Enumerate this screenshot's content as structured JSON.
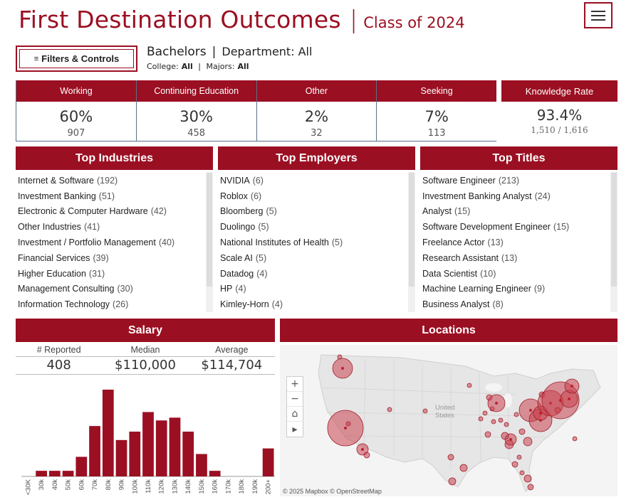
{
  "header": {
    "title": "First Destination Outcomes",
    "subtitle": "Class of 2024",
    "menu_icon": "hamburger-icon"
  },
  "filters": {
    "button_label": "Filters & Controls",
    "button_icon": "list-icon",
    "degree": "Bachelors",
    "department_label": "Department:",
    "department_value": "All",
    "college_label": "College:",
    "college_value": "All",
    "majors_label": "Majors:",
    "majors_value": "All"
  },
  "kpis": [
    {
      "label": "Working",
      "percent": "60%",
      "count": "907"
    },
    {
      "label": "Continuing Education",
      "percent": "30%",
      "count": "458"
    },
    {
      "label": "Other",
      "percent": "2%",
      "count": "32"
    },
    {
      "label": "Seeking",
      "percent": "7%",
      "count": "113"
    }
  ],
  "knowledge": {
    "label": "Knowledge Rate",
    "value": "93.4%",
    "fraction": "1,510 / 1,616"
  },
  "top_industries": {
    "title": "Top Industries",
    "items": [
      {
        "name": "Internet & Software",
        "count": "(192)"
      },
      {
        "name": "Investment Banking",
        "count": "(51)"
      },
      {
        "name": "Electronic & Computer Hardware",
        "count": "(42)"
      },
      {
        "name": "Other Industries",
        "count": "(41)"
      },
      {
        "name": "Investment / Portfolio Management",
        "count": "(40)"
      },
      {
        "name": "Financial Services",
        "count": "(39)"
      },
      {
        "name": "Higher Education",
        "count": "(31)"
      },
      {
        "name": "Management Consulting",
        "count": "(30)"
      },
      {
        "name": "Information Technology",
        "count": "(26)"
      }
    ]
  },
  "top_employers": {
    "title": "Top Employers",
    "items": [
      {
        "name": "NVIDIA",
        "count": "(6)"
      },
      {
        "name": "Roblox",
        "count": "(6)"
      },
      {
        "name": "Bloomberg",
        "count": "(5)"
      },
      {
        "name": "Duolingo",
        "count": "(5)"
      },
      {
        "name": "National Institutes of Health",
        "count": "(5)"
      },
      {
        "name": "Scale AI",
        "count": "(5)"
      },
      {
        "name": "Datadog",
        "count": "(4)"
      },
      {
        "name": "HP",
        "count": "(4)"
      },
      {
        "name": "Kimley-Horn",
        "count": "(4)"
      }
    ]
  },
  "top_titles": {
    "title": "Top Titles",
    "items": [
      {
        "name": "Software Engineer",
        "count": "(213)"
      },
      {
        "name": "Investment Banking Analyst",
        "count": "(24)"
      },
      {
        "name": "Analyst",
        "count": "(15)"
      },
      {
        "name": "Software Development Engineer",
        "count": "(15)"
      },
      {
        "name": "Freelance Actor",
        "count": "(13)"
      },
      {
        "name": "Research Assistant",
        "count": "(13)"
      },
      {
        "name": "Data Scientist",
        "count": "(10)"
      },
      {
        "name": "Machine Learning Engineer",
        "count": "(9)"
      },
      {
        "name": "Business Analyst",
        "count": "(8)"
      }
    ]
  },
  "salary": {
    "title": "Salary",
    "reported_label": "# Reported",
    "reported_value": "408",
    "median_label": "Median",
    "median_value": "$110,000",
    "average_label": "Average",
    "average_value": "$114,704"
  },
  "chart_data": {
    "type": "bar",
    "categories": [
      "<30K",
      "30k",
      "40k",
      "50k",
      "60k",
      "70k",
      "80k",
      "90k",
      "100k",
      "110k",
      "120k",
      "130k",
      "140k",
      "150k",
      "160k",
      "170k",
      "180k",
      "190k",
      "200+"
    ],
    "values": [
      0,
      2,
      2,
      2,
      7,
      18,
      31,
      13,
      16,
      23,
      20,
      21,
      16,
      8,
      2,
      0,
      0,
      0,
      10
    ],
    "title": "",
    "xlabel": "",
    "ylabel": "",
    "grid": false,
    "bar_color": "#9b0f22"
  },
  "locations": {
    "title": "Locations",
    "country_label_1": "United",
    "country_label_2": "States",
    "attribution": "© 2025 Mapbox  © OpenStreetMap",
    "controls": [
      "zoom-in-icon",
      "zoom-out-icon",
      "home-icon",
      "play-icon"
    ]
  },
  "colors": {
    "accent": "#9b0f22",
    "bubble": "#c9444f"
  }
}
